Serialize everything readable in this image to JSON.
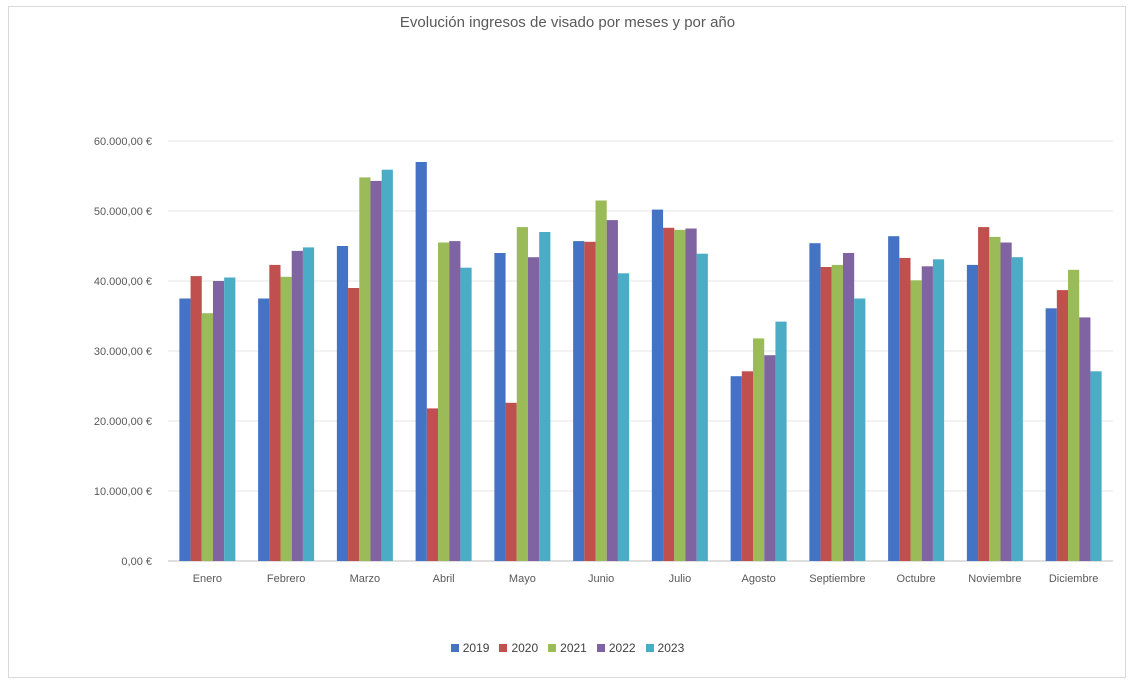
{
  "chart_data": {
    "type": "bar",
    "title": "Evolución ingresos de visado por meses y por año",
    "categories": [
      "Enero",
      "Febrero",
      "Marzo",
      "Abril",
      "Mayo",
      "Junio",
      "Julio",
      "Agosto",
      "Septiembre",
      "Octubre",
      "Noviembre",
      "Diciembre"
    ],
    "series": [
      {
        "name": "2019",
        "color": "#4472C4",
        "values": [
          37500,
          37500,
          45000,
          57000,
          44000,
          45700,
          50200,
          26400,
          45400,
          46400,
          42300,
          36100
        ]
      },
      {
        "name": "2020",
        "color": "#C0504D",
        "values": [
          40700,
          42300,
          39000,
          21800,
          22600,
          45600,
          47600,
          27100,
          42000,
          43300,
          47700,
          38700
        ]
      },
      {
        "name": "2021",
        "color": "#9BBB59",
        "values": [
          35400,
          40600,
          54800,
          45500,
          47700,
          51500,
          47300,
          31800,
          42300,
          40100,
          46300,
          41600
        ]
      },
      {
        "name": "2022",
        "color": "#8064A2",
        "values": [
          40000,
          44300,
          54300,
          45700,
          43400,
          48700,
          47500,
          29400,
          44000,
          42100,
          45500,
          34800
        ]
      },
      {
        "name": "2023",
        "color": "#4BACC6",
        "values": [
          40500,
          44800,
          55900,
          41900,
          47000,
          41100,
          43900,
          34200,
          37500,
          43100,
          43400,
          27100
        ]
      }
    ],
    "ylim": [
      0,
      60000
    ],
    "yticks": [
      0,
      10000,
      20000,
      30000,
      40000,
      50000,
      60000
    ],
    "ytick_labels": [
      "0,00 €",
      "10.000,00 €",
      "20.000,00 €",
      "30.000,00 €",
      "40.000,00 €",
      "50.000,00 €",
      "60.000,00 €"
    ],
    "grid": true,
    "legend_position": "bottom"
  }
}
